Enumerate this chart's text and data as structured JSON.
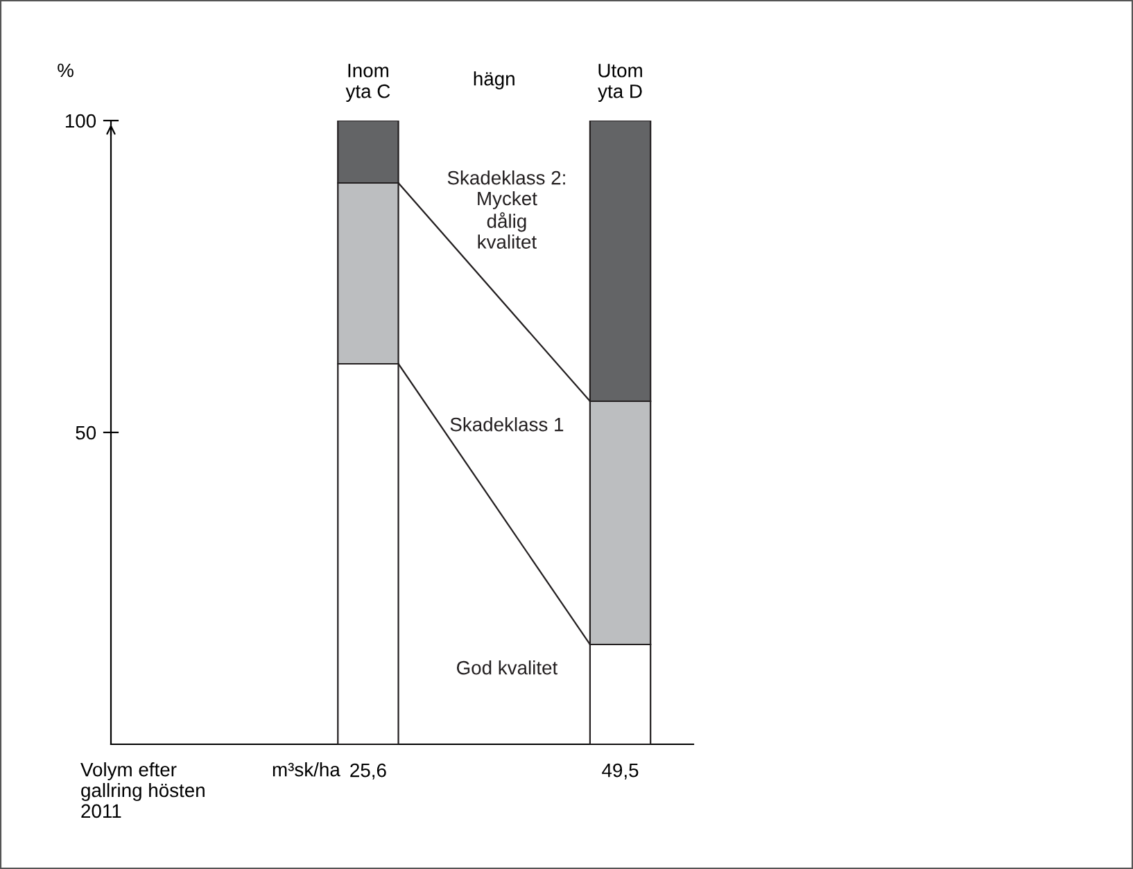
{
  "chart_data": {
    "type": "bar",
    "stacked": true,
    "ylabel": "%",
    "categories": [
      "Inom\nyta C",
      "Utom\nyta D"
    ],
    "series": [
      {
        "name": "God kvalitet",
        "color": "#ffffff",
        "values": [
          61,
          16
        ]
      },
      {
        "name": "Skadeklass 1",
        "color": "#bcbec0",
        "values": [
          29,
          39
        ]
      },
      {
        "name": "Skadeklass 2:\nMycket\ndålig\nkvalitet",
        "color": "#636466",
        "values": [
          10,
          45
        ]
      }
    ],
    "ylim": [
      0,
      100
    ],
    "yticks": [
      50,
      100
    ],
    "grid": false,
    "legend": false,
    "annotations": [
      "hägn",
      "Volym efter\ngallring hösten\n2011",
      "m³sk/ha",
      "25,6",
      "49,5"
    ]
  }
}
